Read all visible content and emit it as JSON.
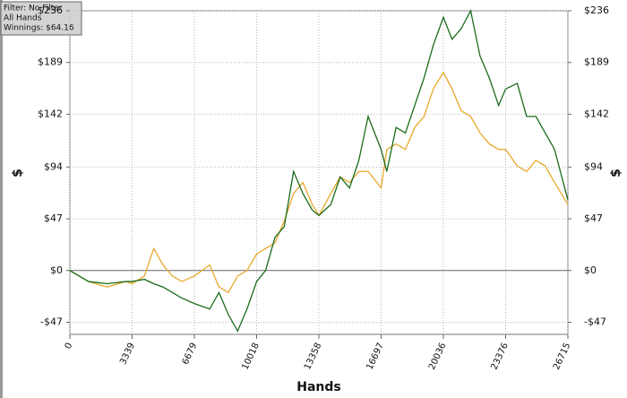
{
  "chart_data": {
    "type": "line",
    "info": [
      "Filter: No Filter",
      "All Hands",
      "Winnings: $64.16"
    ],
    "x_label": "Hands",
    "y_label": "$",
    "x": [
      0,
      1000,
      2000,
      3000,
      3339,
      4000,
      4500,
      5000,
      5500,
      6000,
      6679,
      7500,
      8000,
      8500,
      9000,
      9500,
      10018,
      10500,
      11000,
      11500,
      12000,
      12500,
      13000,
      13358,
      14000,
      14500,
      15000,
      15500,
      16000,
      16697,
      17000,
      17500,
      18000,
      18500,
      19000,
      19500,
      20036,
      20500,
      21000,
      21500,
      22000,
      22500,
      23000,
      23376,
      24000,
      24500,
      25000,
      25500,
      26000,
      26715
    ],
    "series": [
      {
        "color": "#e8a82a",
        "values": [
          0,
          -10,
          -15,
          -10,
          -12,
          -5,
          20,
          5,
          -5,
          -10,
          -5,
          5,
          -15,
          -20,
          -5,
          0,
          15,
          20,
          25,
          45,
          70,
          80,
          60,
          50,
          70,
          85,
          80,
          90,
          90,
          75,
          110,
          115,
          110,
          130,
          140,
          165,
          180,
          165,
          145,
          140,
          125,
          115,
          110,
          110,
          95,
          90,
          100,
          95,
          80,
          60
        ]
      },
      {
        "color": "#1a6b1a",
        "values": [
          0,
          -10,
          -12,
          -10,
          -10,
          -8,
          -12,
          -15,
          -20,
          -25,
          -30,
          -35,
          -20,
          -40,
          -55,
          -35,
          -10,
          0,
          30,
          40,
          90,
          70,
          55,
          50,
          60,
          85,
          75,
          100,
          140,
          110,
          90,
          130,
          125,
          150,
          175,
          205,
          230,
          210,
          220,
          236,
          195,
          175,
          150,
          165,
          170,
          140,
          140,
          125,
          110,
          64
        ]
      }
    ],
    "xlim": [
      0,
      26715
    ],
    "xticks": [
      0,
      3339,
      6679,
      10018,
      13358,
      16697,
      20036,
      23376,
      26715
    ],
    "ylim": [
      -58,
      236
    ],
    "yticks": [
      {
        "value": -47,
        "label": "-$47"
      },
      {
        "value": 0,
        "label": "$0"
      },
      {
        "value": 47,
        "label": "$47"
      },
      {
        "value": 94,
        "label": "$94"
      },
      {
        "value": 142,
        "label": "$142"
      },
      {
        "value": 189,
        "label": "$189"
      },
      {
        "value": 236,
        "label": "$236"
      }
    ],
    "grid": true
  }
}
